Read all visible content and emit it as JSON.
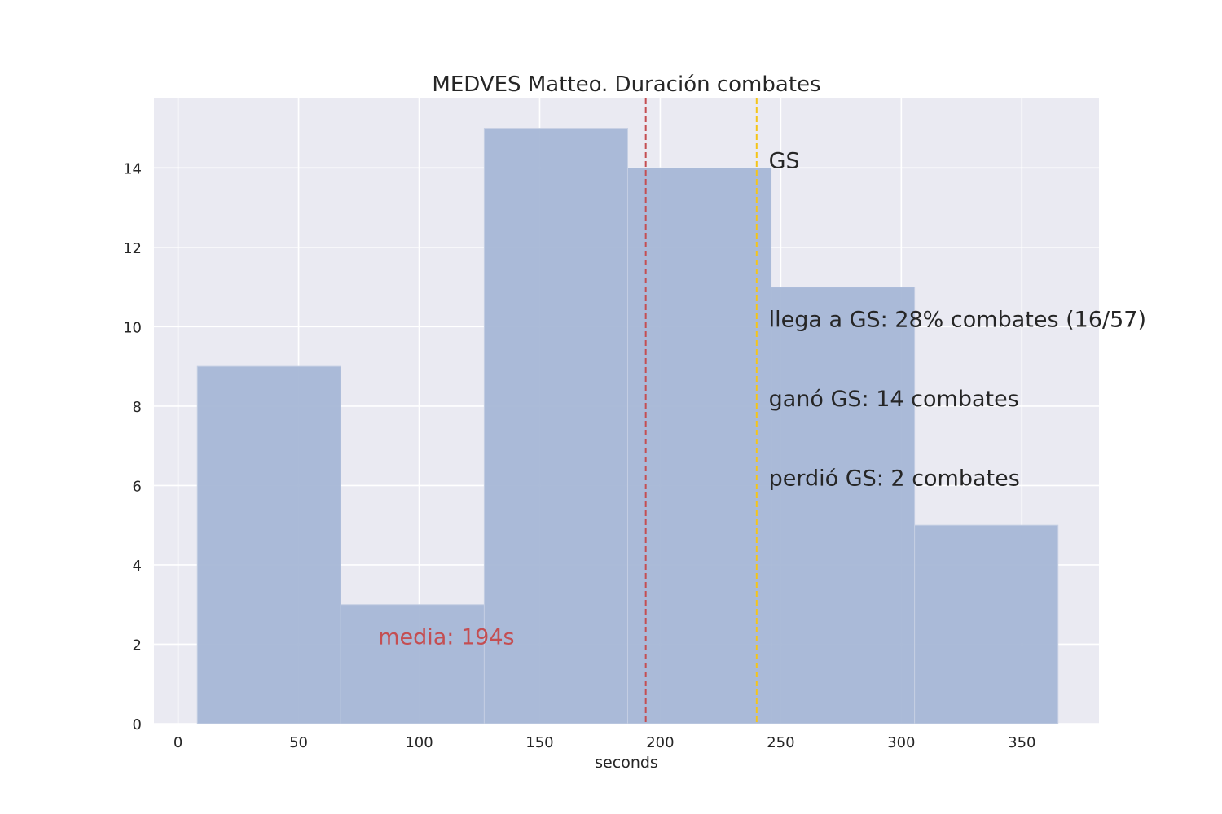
{
  "chart_data": {
    "type": "bar",
    "title": "MEDVES Matteo. Duración combates",
    "xlabel": "seconds",
    "ylabel": "",
    "xlim": [
      -10,
      382
    ],
    "ylim": [
      0,
      15.75
    ],
    "x_ticks": [
      0,
      50,
      100,
      150,
      200,
      250,
      300,
      350
    ],
    "y_ticks": [
      0,
      2,
      4,
      6,
      8,
      10,
      12,
      14
    ],
    "grid": true,
    "bins": [
      {
        "start": 8,
        "end": 67.5,
        "count": 9
      },
      {
        "start": 67.5,
        "end": 127,
        "count": 3
      },
      {
        "start": 127,
        "end": 186.5,
        "count": 15
      },
      {
        "start": 186.5,
        "end": 246,
        "count": 14
      },
      {
        "start": 246,
        "end": 305.5,
        "count": 11
      },
      {
        "start": 305.5,
        "end": 365,
        "count": 5
      }
    ],
    "bar_color": "#a7b7d6",
    "background_color": "#eaeaf2",
    "vlines": [
      {
        "x": 194,
        "color": "#c44e52",
        "style": "dashed",
        "role": "mean"
      },
      {
        "x": 240,
        "color": "#f5c518",
        "style": "dashed",
        "role": "golden-score"
      }
    ],
    "annotations": [
      {
        "text": "media: 194s",
        "x": 83,
        "y": 2,
        "color": "#c44e52"
      },
      {
        "text": "GS",
        "x": 245,
        "y": 14,
        "color": "#262626"
      },
      {
        "text": "llega a GS: 28% combates (16/57)",
        "x": 245,
        "y": 10,
        "color": "#262626"
      },
      {
        "text": "ganó GS: 14 combates",
        "x": 245,
        "y": 8,
        "color": "#262626"
      },
      {
        "text": "perdió GS: 2 combates",
        "x": 245,
        "y": 6,
        "color": "#262626"
      }
    ]
  }
}
